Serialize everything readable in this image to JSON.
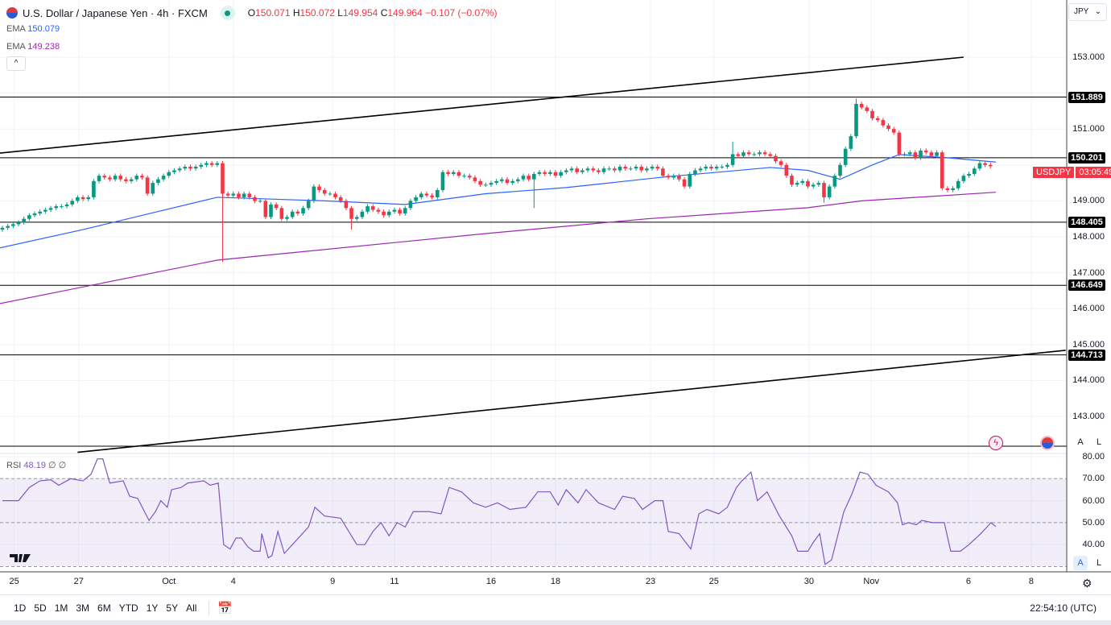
{
  "header": {
    "symbol_title": "U.S. Dollar / Japanese Yen · 4h · FXCM",
    "open_label": "O",
    "open": "150.071",
    "high_label": "H",
    "high": "150.072",
    "low_label": "L",
    "low": "149.954",
    "close_label": "C",
    "close": "149.964",
    "change": "−0.107 (−0.07%)"
  },
  "indicators": {
    "ema1_label": "EMA",
    "ema1_value": "150.079",
    "ema2_label": "EMA",
    "ema2_value": "149.238",
    "rsi_label": "RSI",
    "rsi_value": "48.19",
    "rsi_extra1": "∅",
    "rsi_extra2": "∅",
    "collapse": "^"
  },
  "currency_select": "JPY",
  "price_axis": [
    "153.000",
    "151.000",
    "149.000",
    "148.000",
    "147.000",
    "146.000",
    "145.000",
    "144.000",
    "143.000"
  ],
  "price_axis_values": [
    153,
    151,
    149,
    148,
    147,
    146,
    145,
    144,
    143
  ],
  "levels": [
    {
      "label": "151.889",
      "value": 151.889
    },
    {
      "label": "150.201",
      "value": 150.201
    },
    {
      "label": "148.405",
      "value": 148.405
    },
    {
      "label": "146.649",
      "value": 146.649
    },
    {
      "label": "144.713",
      "value": 144.713
    }
  ],
  "current_tag": {
    "symbol": "USDJPY",
    "countdown": "03:05:49"
  },
  "rsi_axis": [
    "80.00",
    "70.00",
    "60.00",
    "50.00",
    "40.00"
  ],
  "rsi_axis_values": [
    80,
    70,
    60,
    50,
    40
  ],
  "time_axis": [
    {
      "label": "25",
      "idx": 2.2
    },
    {
      "label": "27",
      "idx": 14.2
    },
    {
      "label": "Oct",
      "idx": 31
    },
    {
      "label": "4",
      "idx": 43
    },
    {
      "label": "9",
      "idx": 61.5
    },
    {
      "label": "11",
      "idx": 73
    },
    {
      "label": "16",
      "idx": 91
    },
    {
      "label": "18",
      "idx": 103
    },
    {
      "label": "23",
      "idx": 120.7
    },
    {
      "label": "25",
      "idx": 132.5
    },
    {
      "label": "30",
      "idx": 150.2
    },
    {
      "label": "Nov",
      "idx": 161.8
    },
    {
      "label": "6",
      "idx": 179.9
    },
    {
      "label": "8",
      "idx": 191.6
    }
  ],
  "scale_buttons": {
    "auto": "A",
    "log": "L"
  },
  "bottom_bar": {
    "ranges": [
      "1D",
      "5D",
      "1M",
      "3M",
      "6M",
      "YTD",
      "1Y",
      "5Y",
      "All"
    ],
    "clock": "22:54:10 (UTC)"
  },
  "colors": {
    "up": "#089981",
    "down": "#f23645",
    "ema_fast": "#2962ff",
    "ema_slow": "#9c27b0",
    "rsi": "#7e57c2"
  },
  "chart_data": {
    "type": "candlestick",
    "title": "U.S. Dollar / Japanese Yen · 4h · FXCM",
    "first_open": 148.2,
    "closes": [
      148.25,
      148.3,
      148.35,
      148.4,
      148.5,
      148.6,
      148.65,
      148.7,
      148.75,
      148.8,
      148.85,
      148.85,
      148.9,
      149.0,
      149.1,
      149.05,
      149.1,
      149.55,
      149.7,
      149.65,
      149.6,
      149.7,
      149.6,
      149.55,
      149.6,
      149.7,
      149.65,
      149.2,
      149.5,
      149.6,
      149.7,
      149.8,
      149.85,
      149.9,
      149.95,
      149.9,
      149.95,
      150.0,
      150.05,
      150.0,
      150.05,
      149.2,
      149.15,
      149.2,
      149.1,
      149.2,
      149.1,
      149.0,
      149.0,
      148.55,
      148.9,
      148.8,
      148.5,
      148.55,
      148.7,
      148.65,
      148.8,
      149.0,
      149.4,
      149.3,
      149.2,
      149.2,
      149.1,
      149.0,
      148.8,
      148.5,
      148.55,
      148.7,
      148.85,
      148.75,
      148.7,
      148.6,
      148.7,
      148.75,
      148.65,
      148.8,
      149.0,
      149.1,
      149.2,
      149.15,
      149.1,
      149.3,
      149.8,
      149.75,
      149.8,
      149.7,
      149.7,
      149.65,
      149.55,
      149.45,
      149.45,
      149.5,
      149.55,
      149.6,
      149.5,
      149.55,
      149.6,
      149.7,
      149.6,
      149.75,
      149.8,
      149.75,
      149.8,
      149.7,
      149.8,
      149.85,
      149.9,
      149.8,
      149.85,
      149.9,
      149.85,
      149.8,
      149.9,
      149.9,
      149.85,
      149.95,
      149.9,
      149.9,
      149.95,
      149.85,
      149.9,
      149.95,
      149.9,
      149.7,
      149.65,
      149.7,
      149.6,
      149.4,
      149.75,
      149.85,
      149.9,
      149.95,
      149.9,
      149.95,
      149.95,
      150.0,
      150.3,
      150.25,
      150.35,
      150.3,
      150.3,
      150.35,
      150.3,
      150.25,
      150.1,
      150.0,
      149.7,
      149.45,
      149.5,
      149.55,
      149.4,
      149.45,
      149.5,
      149.1,
      149.4,
      149.7,
      150.0,
      150.45,
      150.8,
      151.7,
      151.6,
      151.5,
      151.3,
      151.25,
      151.1,
      151.0,
      150.9,
      150.3,
      150.3,
      150.35,
      150.2,
      150.4,
      150.35,
      150.25,
      150.35,
      149.35,
      149.3,
      149.35,
      149.55,
      149.7,
      149.75,
      149.9,
      150.05,
      150.0,
      149.964
    ],
    "low_overrides": {
      "41": 147.3,
      "65": 148.2,
      "99": 148.8,
      "153": 148.95
    },
    "high_overrides": {
      "136": 150.65,
      "159": 151.85
    },
    "ema_fast": [
      [
        -0.5,
        147.69
      ],
      [
        15,
        148.2
      ],
      [
        40,
        149.1
      ],
      [
        60,
        149.0
      ],
      [
        75,
        148.9
      ],
      [
        90,
        149.2
      ],
      [
        105,
        149.37
      ],
      [
        123,
        149.66
      ],
      [
        143,
        149.93
      ],
      [
        150,
        149.85
      ],
      [
        156,
        149.6
      ],
      [
        162,
        150.0
      ],
      [
        167,
        150.29
      ],
      [
        176,
        150.2
      ],
      [
        185,
        150.08
      ]
    ],
    "ema_slow": [
      [
        -0.5,
        146.14
      ],
      [
        40,
        147.35
      ],
      [
        90,
        148.09
      ],
      [
        120,
        148.5
      ],
      [
        150,
        148.81
      ],
      [
        160,
        149.0
      ],
      [
        185,
        149.24
      ]
    ],
    "trendlines": [
      {
        "from": [
          -0.5,
          150.33
        ],
        "to": [
          179,
          153.0
        ]
      },
      {
        "from": [
          14,
          142.0
        ],
        "to": [
          198,
          144.84
        ]
      }
    ],
    "unlabeled_level": 142.17,
    "rsi": {
      "levels": [
        70,
        50,
        30
      ],
      "points": [
        [
          0,
          60
        ],
        [
          3,
          60
        ],
        [
          5,
          66
        ],
        [
          7,
          69
        ],
        [
          9,
          69.5
        ],
        [
          10.5,
          67
        ],
        [
          12.7,
          70
        ],
        [
          15,
          69
        ],
        [
          16.5,
          72
        ],
        [
          17.7,
          79
        ],
        [
          18.7,
          79
        ],
        [
          20,
          68
        ],
        [
          22.5,
          69
        ],
        [
          23.7,
          62
        ],
        [
          25.2,
          61
        ],
        [
          27.3,
          51
        ],
        [
          28.5,
          55
        ],
        [
          29.5,
          60
        ],
        [
          30.7,
          57
        ],
        [
          31.5,
          65
        ],
        [
          33.3,
          66
        ],
        [
          34.5,
          68
        ],
        [
          37.5,
          69
        ],
        [
          38.7,
          67
        ],
        [
          40.2,
          68
        ],
        [
          41.2,
          40
        ],
        [
          42.4,
          38
        ],
        [
          43.5,
          43
        ],
        [
          44.5,
          43
        ],
        [
          45.7,
          39
        ],
        [
          46.8,
          37
        ],
        [
          48,
          37
        ],
        [
          48.3,
          45
        ],
        [
          49.5,
          34
        ],
        [
          50.2,
          35
        ],
        [
          51.3,
          46
        ],
        [
          52.5,
          36
        ],
        [
          54,
          40
        ],
        [
          57,
          48
        ],
        [
          58.2,
          57
        ],
        [
          60,
          53
        ],
        [
          63,
          52
        ],
        [
          66,
          40
        ],
        [
          67.5,
          40
        ],
        [
          69,
          46
        ],
        [
          70.5,
          50
        ],
        [
          72,
          44
        ],
        [
          73.5,
          50
        ],
        [
          75,
          48
        ],
        [
          76.5,
          55
        ],
        [
          79.5,
          55
        ],
        [
          81.7,
          54
        ],
        [
          83.2,
          66
        ],
        [
          85.5,
          64
        ],
        [
          87.7,
          59
        ],
        [
          90,
          57
        ],
        [
          92.2,
          59
        ],
        [
          94.5,
          56
        ],
        [
          97.5,
          57
        ],
        [
          99.7,
          64
        ],
        [
          102,
          64
        ],
        [
          103.5,
          58
        ],
        [
          105,
          65
        ],
        [
          107.2,
          59
        ],
        [
          108.7,
          65
        ],
        [
          111,
          59
        ],
        [
          114,
          56
        ],
        [
          115.5,
          62
        ],
        [
          117.7,
          61
        ],
        [
          119.2,
          56
        ],
        [
          121.5,
          60
        ],
        [
          123,
          60
        ],
        [
          124,
          46
        ],
        [
          126,
          45
        ],
        [
          128.2,
          38
        ],
        [
          129.7,
          54
        ],
        [
          131.2,
          56
        ],
        [
          133.4,
          54
        ],
        [
          135,
          57
        ],
        [
          136.7,
          66
        ],
        [
          137.7,
          69
        ],
        [
          139.4,
          73
        ],
        [
          140.6,
          60
        ],
        [
          142.4,
          64
        ],
        [
          144.7,
          53
        ],
        [
          147,
          44
        ],
        [
          148.1,
          37
        ],
        [
          150,
          37
        ],
        [
          151,
          41
        ],
        [
          152.2,
          45
        ],
        [
          153.2,
          31
        ],
        [
          154.4,
          33
        ],
        [
          156.7,
          55
        ],
        [
          158.2,
          63
        ],
        [
          159.7,
          73
        ],
        [
          161.2,
          72
        ],
        [
          162.7,
          67
        ],
        [
          165,
          64
        ],
        [
          166.7,
          59
        ],
        [
          167.6,
          49
        ],
        [
          168.7,
          50
        ],
        [
          170.2,
          49
        ],
        [
          171.2,
          51
        ],
        [
          173.2,
          50
        ],
        [
          175.4,
          50
        ],
        [
          176.6,
          37
        ],
        [
          178.4,
          37
        ],
        [
          180,
          40
        ],
        [
          182.2,
          45
        ],
        [
          184.1,
          50
        ],
        [
          185,
          48.19
        ]
      ]
    }
  }
}
